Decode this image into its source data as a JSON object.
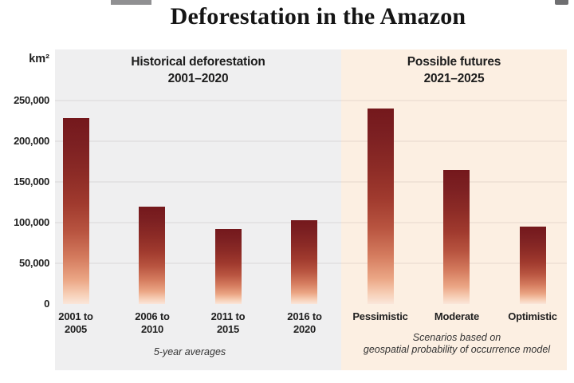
{
  "page": {
    "title": "Deforestation in the Amazon"
  },
  "y_axis": {
    "unit_label": "km²"
  },
  "panels": {
    "historical": {
      "header_line1": "Historical deforestation",
      "header_line2": "2001–2020",
      "caption_lines": [
        "5-year averages"
      ]
    },
    "futures": {
      "header_line1": "Possible futures",
      "header_line2": "2021–2025",
      "caption_lines": [
        "Scenarios based on",
        "geospatial probability of occurrence model"
      ]
    }
  },
  "chart_data": {
    "type": "bar",
    "title": "Deforestation in the Amazon",
    "unit": "km²",
    "ylabel": "km²",
    "ylim": [
      0,
      250000
    ],
    "yticks": [
      0,
      50000,
      100000,
      150000,
      200000,
      250000
    ],
    "ytick_labels": [
      "0",
      "50,000",
      "100,000",
      "150,000",
      "200,000",
      "250,000"
    ],
    "grid": true,
    "legend": "none",
    "groups": [
      {
        "name": "Historical deforestation",
        "period": "2001–2020",
        "note": "5-year averages",
        "categories": [
          "2001 to 2005",
          "2006 to 2010",
          "2011 to 2015",
          "2016 to 2020"
        ],
        "values": [
          228000,
          120000,
          92000,
          103000
        ]
      },
      {
        "name": "Possible futures",
        "period": "2021–2025",
        "note": "Scenarios based on geospatial probability of occurrence model",
        "categories": [
          "Pessimistic",
          "Moderate",
          "Optimistic"
        ],
        "values": [
          240000,
          165000,
          95000
        ]
      }
    ],
    "bar_color_top": "#74181c",
    "bar_color_bottom": "#fae6da"
  },
  "colors": {
    "historical_panel_bg": "#efeff0",
    "futures_panel_bg": "#fcefe2",
    "title_text": "#151515",
    "label_text": "#1f1f1f"
  }
}
